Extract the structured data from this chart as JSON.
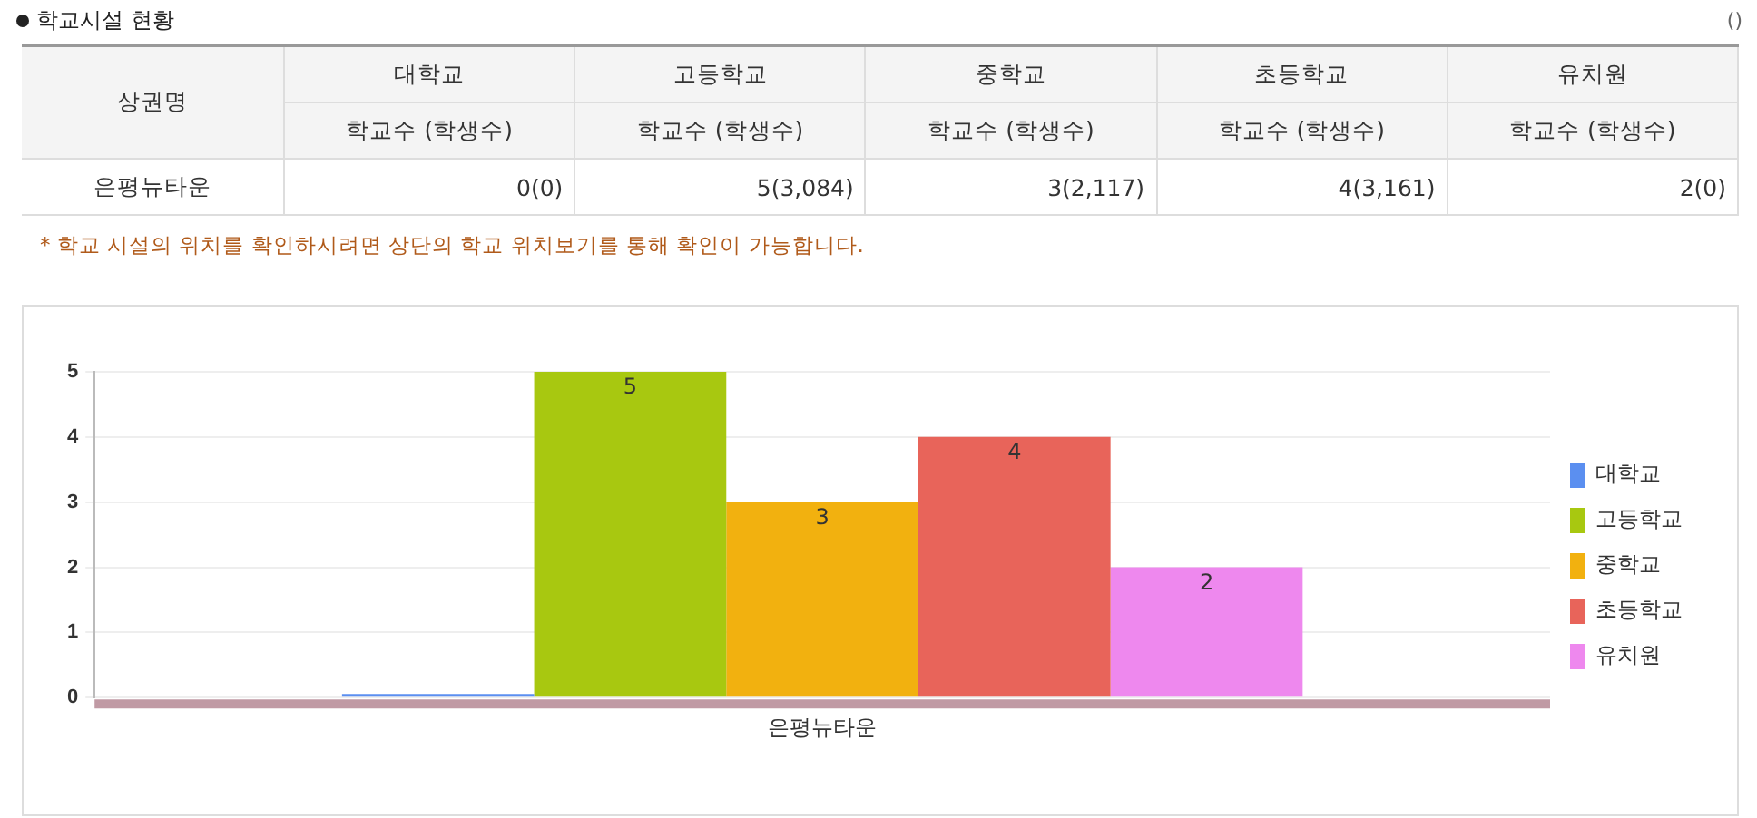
{
  "chart_data": [
    {
      "type": "other",
      "title": "학교시설 현황",
      "ylabel": "상권명",
      "categories": [
        "대학교",
        "고등학교",
        "중학교",
        "초등학교",
        "유치원"
      ],
      "subtitle": "학교수 (학생수)",
      "y_categories": [
        "은평뉴타운"
      ],
      "cell_labels": [
        [
          "0(0)",
          "5(3,084)",
          "3(2,117)",
          "4(3,161)",
          "2(0)"
        ]
      ],
      "annotations": [
        "()",
        "* 학교 시설의 위치를 확인하시려면 상단의 학교 위치보기를 통해 확인이 가능합니다."
      ]
    },
    {
      "type": "bar",
      "categories": [
        "은평뉴타운"
      ],
      "ylim": [
        0,
        5
      ],
      "yticks": [
        0,
        1,
        2,
        3,
        4,
        5
      ],
      "grid": "y",
      "legend": "right",
      "series": [
        {
          "name": "대학교",
          "color": "#5b8ff0",
          "values": [
            0
          ],
          "value_labels": [
            null
          ]
        },
        {
          "name": "고등학교",
          "color": "#a8c810",
          "values": [
            5
          ],
          "value_labels": [
            "5"
          ]
        },
        {
          "name": "중학교",
          "color": "#f2b10f",
          "values": [
            3
          ],
          "value_labels": [
            "3"
          ]
        },
        {
          "name": "초등학교",
          "color": "#e8645a",
          "values": [
            4
          ],
          "value_labels": [
            "4"
          ]
        },
        {
          "name": "유치원",
          "color": "#ee88ee",
          "values": [
            2
          ],
          "value_labels": [
            "2"
          ]
        }
      ]
    }
  ]
}
